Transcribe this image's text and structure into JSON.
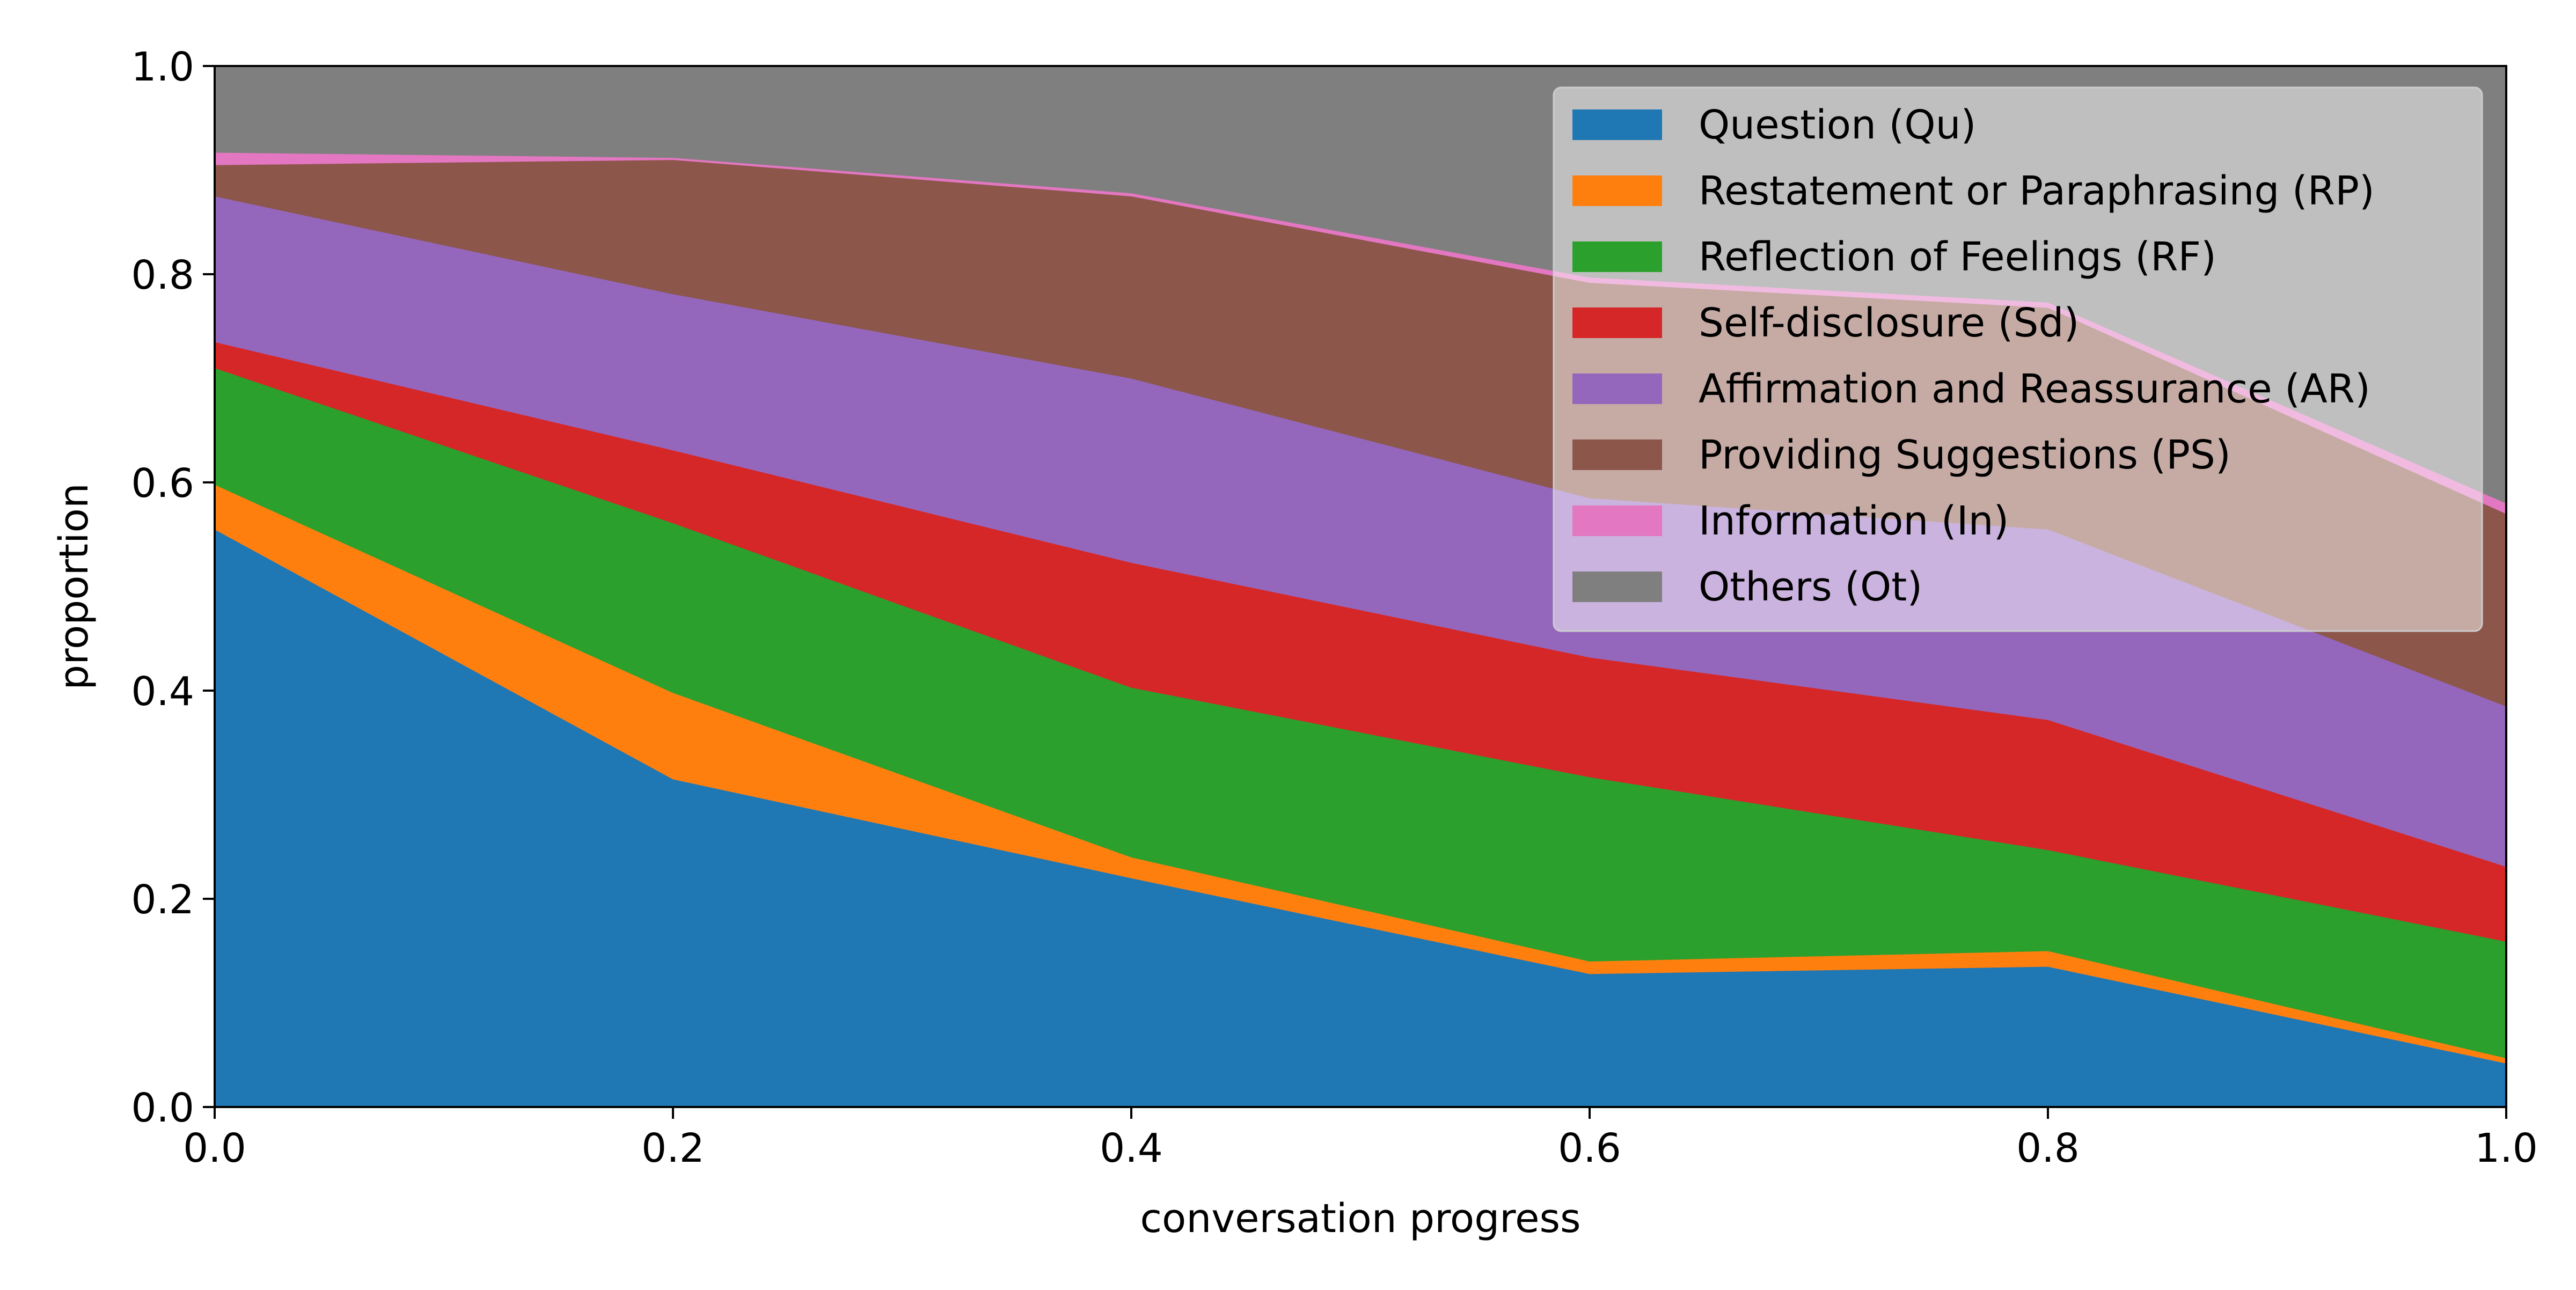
{
  "chart_data": {
    "type": "area",
    "stacked": true,
    "x": [
      0.0,
      0.2,
      0.4,
      0.6,
      0.8,
      1.0
    ],
    "series": [
      {
        "name": "Question (Qu)",
        "color": "#1f77b4",
        "values": [
          0.555,
          0.315,
          0.22,
          0.128,
          0.135,
          0.042
        ]
      },
      {
        "name": "Restatement or Paraphrasing (RP)",
        "color": "#ff7f0e",
        "values": [
          0.043,
          0.083,
          0.02,
          0.012,
          0.015,
          0.005
        ]
      },
      {
        "name": "Reflection of Feelings (RF)",
        "color": "#2ca02c",
        "values": [
          0.112,
          0.163,
          0.163,
          0.177,
          0.097,
          0.112
        ]
      },
      {
        "name": "Self-disclosure (Sd)",
        "color": "#d62728",
        "values": [
          0.025,
          0.07,
          0.12,
          0.115,
          0.125,
          0.072
        ]
      },
      {
        "name": "Affirmation and Reassurance (AR)",
        "color": "#9467bd",
        "values": [
          0.14,
          0.15,
          0.177,
          0.153,
          0.183,
          0.154
        ]
      },
      {
        "name": "Providing Suggestions (PS)",
        "color": "#8c564b",
        "values": [
          0.03,
          0.129,
          0.175,
          0.207,
          0.213,
          0.185
        ]
      },
      {
        "name": "Information (In)",
        "color": "#e377c2",
        "values": [
          0.012,
          0.002,
          0.003,
          0.005,
          0.005,
          0.01
        ]
      },
      {
        "name": "Others (Ot)",
        "color": "#7f7f7f",
        "values": [
          0.083,
          0.088,
          0.122,
          0.203,
          0.227,
          0.42
        ]
      }
    ],
    "xlabel": "conversation progress",
    "ylabel": "proportion",
    "xlim": [
      0.0,
      1.0
    ],
    "ylim": [
      0.0,
      1.0
    ],
    "xticks": [
      "0.0",
      "0.2",
      "0.4",
      "0.6",
      "0.8",
      "1.0"
    ],
    "yticks": [
      "0.0",
      "0.2",
      "0.4",
      "0.6",
      "0.8",
      "1.0"
    ],
    "legend_position": "top-right",
    "grid": false
  }
}
